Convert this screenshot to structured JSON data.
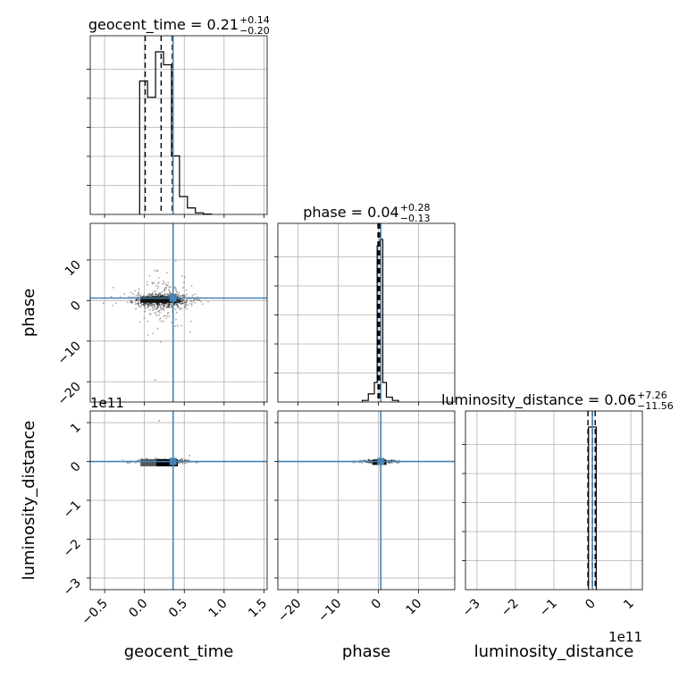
{
  "chart_data": {
    "type": "corner",
    "parameters": [
      "geocent_time",
      "phase",
      "luminosity_distance"
    ],
    "axis_labels": {
      "x": [
        "geocent_time",
        "phase",
        "luminosity_distance"
      ],
      "y": [
        "phase",
        "luminosity_distance"
      ]
    },
    "offset_labels": {
      "luminosity_distance_y": "1e11",
      "luminosity_distance_x": "1e11"
    },
    "titles": [
      {
        "name": "geocent_time",
        "median": "0.21",
        "plus": "+0.14",
        "minus": "−0.20"
      },
      {
        "name": "phase",
        "median": "0.04",
        "plus": "+0.28",
        "minus": "−0.13"
      },
      {
        "name": "luminosity_distance",
        "median": "0.06",
        "plus": "+7.26",
        "minus": "−11.56"
      }
    ],
    "ranges": {
      "geocent_time": [
        -0.68,
        1.54
      ],
      "phase": [
        -25,
        19
      ],
      "luminosity_distance": [
        -3.3,
        1.3
      ]
    },
    "ticks": {
      "geocent_time": {
        "values": [
          -0.5,
          0.0,
          0.5,
          1.0,
          1.5
        ],
        "labels": [
          "−0.5",
          "0.0",
          "0.5",
          "1.0",
          "1.5"
        ]
      },
      "phase": {
        "values": [
          -20,
          -10,
          0,
          10
        ],
        "labels": [
          "−20",
          "−10",
          "0",
          "10"
        ]
      },
      "luminosity_distance": {
        "values": [
          -3,
          -2,
          -1,
          0,
          1
        ],
        "labels": [
          "−3",
          "−2",
          "−1",
          "0",
          "1"
        ]
      }
    },
    "truths": {
      "geocent_time": 0.36,
      "phase": 0.6,
      "luminosity_distance": 0.0
    },
    "truth_color": "#4682b4",
    "grid": true,
    "histograms": {
      "geocent_time": {
        "edges": [
          -0.06,
          0.04,
          0.14,
          0.24,
          0.34,
          0.44,
          0.54,
          0.64,
          0.74,
          0.84
        ],
        "counts": [
          0.82,
          0.72,
          1.0,
          0.92,
          0.36,
          0.11,
          0.04,
          0.01,
          0.002
        ],
        "quantiles": [
          0.01,
          0.21,
          0.35
        ]
      },
      "phase": {
        "edges": [
          -4.0,
          -2.5,
          -1.0,
          -0.3,
          0.4,
          1.1,
          2.0,
          3.5,
          5.0
        ],
        "counts": [
          0.01,
          0.05,
          0.12,
          0.96,
          1.0,
          0.12,
          0.03,
          0.01
        ],
        "quantiles": [
          -0.09,
          0.04,
          0.32
        ]
      },
      "luminosity_distance": {
        "edges": [
          -0.1,
          0.0,
          0.1
        ],
        "counts": [
          0.98,
          0.98
        ],
        "quantiles": [
          -0.115,
          0.0006,
          0.0732
        ]
      }
    }
  }
}
